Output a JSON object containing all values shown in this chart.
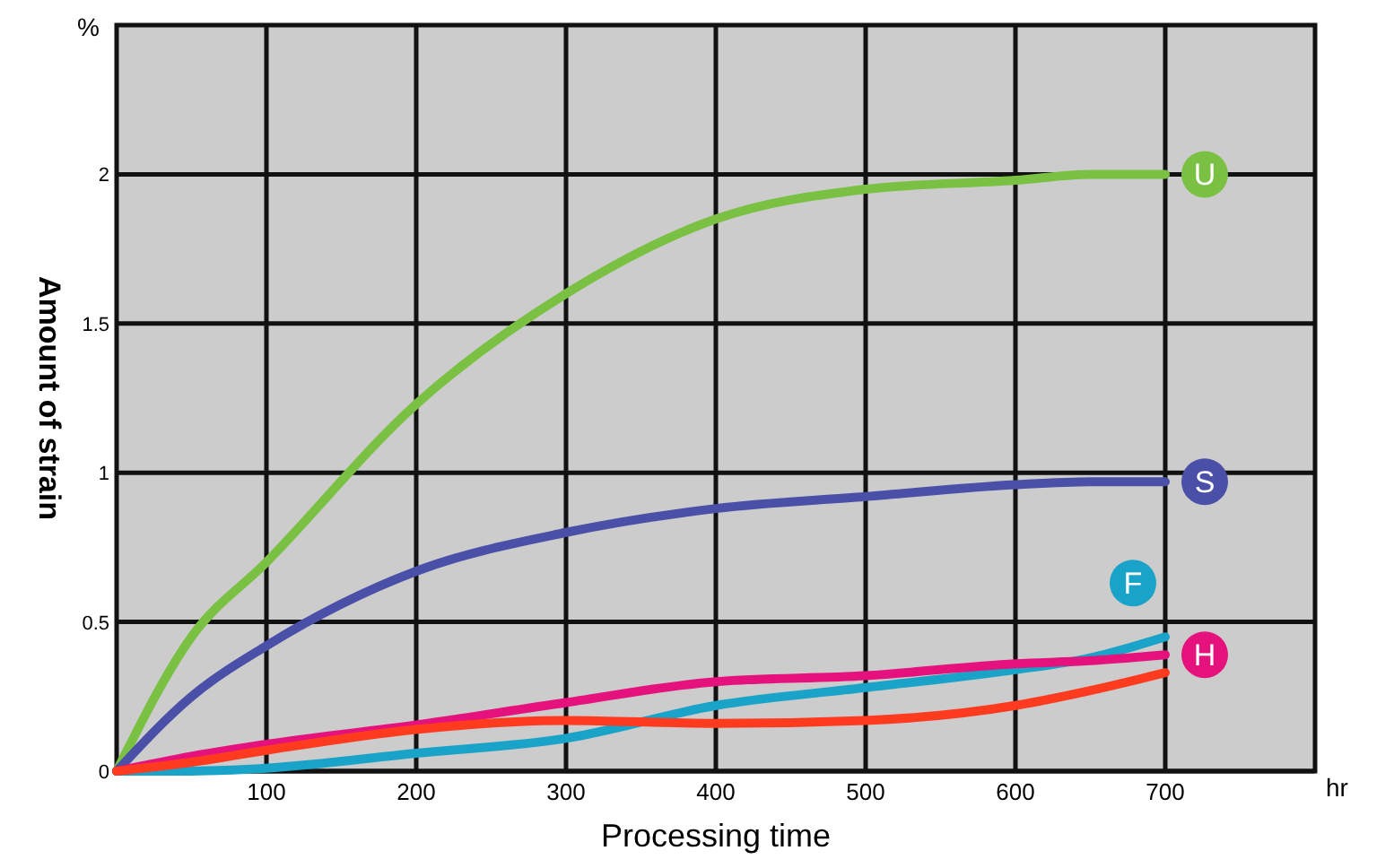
{
  "chart_data": {
    "type": "line",
    "xlabel": "Processing time",
    "ylabel": "Amount of strain",
    "annotations": [
      "%",
      "hr"
    ],
    "x": [
      0,
      50,
      100,
      200,
      300,
      400,
      500,
      600,
      650,
      700
    ],
    "xlim": [
      0,
      800
    ],
    "xticks": [
      100,
      200,
      300,
      400,
      500,
      600,
      700
    ],
    "ylim": [
      0,
      2.5
    ],
    "yticks": [
      0,
      0.5,
      1,
      1.5,
      2
    ],
    "grid": true,
    "legend": "right",
    "marker": "none",
    "line_style": "solid",
    "series": [
      {
        "name": "U",
        "color": "#7ac143",
        "values": [
          0,
          0.45,
          0.7,
          1.23,
          1.6,
          1.85,
          1.95,
          1.98,
          2.0,
          2.0
        ]
      },
      {
        "name": "S",
        "color": "#4a50a8",
        "values": [
          0,
          0.25,
          0.42,
          0.67,
          0.8,
          0.88,
          0.92,
          0.96,
          0.97,
          0.97
        ]
      },
      {
        "name": "F",
        "color": "#1aa3c8",
        "values": [
          0,
          0.0,
          0.01,
          0.06,
          0.11,
          0.22,
          0.28,
          0.34,
          0.38,
          0.45
        ]
      },
      {
        "name": "H",
        "color": "#e5127d",
        "values": [
          0,
          0.05,
          0.09,
          0.155,
          0.23,
          0.3,
          0.32,
          0.36,
          0.37,
          0.39
        ]
      },
      {
        "color": "#ff3b1f",
        "values": [
          0,
          0.03,
          0.07,
          0.14,
          0.17,
          0.16,
          0.17,
          0.22,
          0.27,
          0.33
        ]
      }
    ]
  }
}
